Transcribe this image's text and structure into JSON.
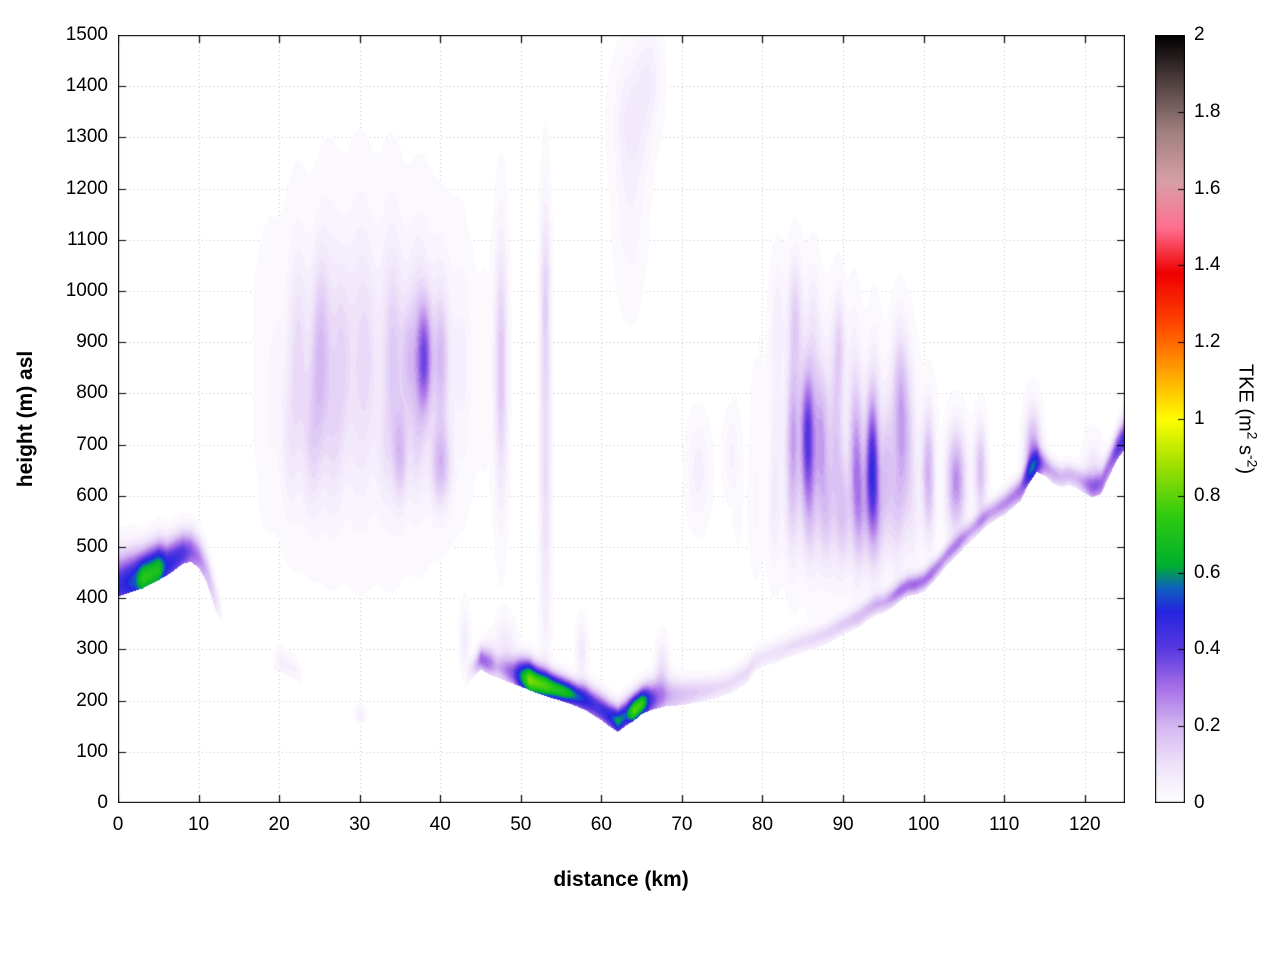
{
  "figure": {
    "background": "#ffffff",
    "xlabel": "distance (km)",
    "ylabel": "height (m) asl",
    "colorbar_label": {
      "prefix": "TKE (m",
      "sup1": "2",
      "mid": " s",
      "sup2": "-2",
      "suffix": ")"
    }
  },
  "chart_data": {
    "type": "heatmap",
    "title": "",
    "xlabel": "distance (km)",
    "ylabel": "height (m) asl",
    "cblabel": "TKE (m^2 s^-2)",
    "xlim": [
      0,
      125
    ],
    "ylim": [
      0,
      1500
    ],
    "cblim": [
      0,
      2
    ],
    "grid": true,
    "xticks": [
      0,
      10,
      20,
      30,
      40,
      50,
      60,
      70,
      80,
      90,
      100,
      110,
      120
    ],
    "yticks": [
      0,
      100,
      200,
      300,
      400,
      500,
      600,
      700,
      800,
      900,
      1000,
      1100,
      1200,
      1300,
      1400,
      1500
    ],
    "cbticks": [
      {
        "v": 0,
        "label": "0"
      },
      {
        "v": 0.2,
        "label": "0.2"
      },
      {
        "v": 0.4,
        "label": "0.4"
      },
      {
        "v": 0.6,
        "label": "0.6"
      },
      {
        "v": 0.8,
        "label": "0.8"
      },
      {
        "v": 1,
        "label": "1"
      },
      {
        "v": 1.2,
        "label": "1.2"
      },
      {
        "v": 1.4,
        "label": "1.4"
      },
      {
        "v": 1.6,
        "label": "1.6"
      },
      {
        "v": 1.8,
        "label": "1.8"
      },
      {
        "v": 2,
        "label": "2"
      }
    ],
    "palette": [
      [
        0.0,
        "#ffffff"
      ],
      [
        0.1,
        "#efe3fa"
      ],
      [
        0.2,
        "#d5b8f2"
      ],
      [
        0.3,
        "#a871e8"
      ],
      [
        0.4,
        "#5a3ae0"
      ],
      [
        0.5,
        "#2525e0"
      ],
      [
        0.56,
        "#1060c0"
      ],
      [
        0.62,
        "#00b030"
      ],
      [
        0.75,
        "#30cc10"
      ],
      [
        0.88,
        "#a0e000"
      ],
      [
        1.0,
        "#ffff00"
      ],
      [
        1.12,
        "#ffa500"
      ],
      [
        1.25,
        "#ff4500"
      ],
      [
        1.38,
        "#f00000"
      ],
      [
        1.5,
        "#ff7090"
      ],
      [
        1.62,
        "#d8a0a8"
      ],
      [
        1.75,
        "#a08080"
      ],
      [
        1.88,
        "#504040"
      ],
      [
        2.0,
        "#000000"
      ]
    ],
    "quantize_step": 0.02,
    "terrain_profile_m": [
      [
        0,
        405
      ],
      [
        3,
        420
      ],
      [
        6,
        445
      ],
      [
        8,
        468
      ],
      [
        9,
        472
      ],
      [
        10,
        460
      ],
      [
        11,
        430
      ],
      [
        12,
        380
      ],
      [
        14,
        310
      ],
      [
        16,
        270
      ],
      [
        18,
        255
      ],
      [
        20,
        258
      ],
      [
        22,
        240
      ],
      [
        24,
        205
      ],
      [
        26,
        180
      ],
      [
        28,
        160
      ],
      [
        30,
        152
      ],
      [
        32,
        158
      ],
      [
        34,
        165
      ],
      [
        36,
        170
      ],
      [
        38,
        172
      ],
      [
        40,
        185
      ],
      [
        42,
        210
      ],
      [
        44,
        245
      ],
      [
        45,
        262
      ],
      [
        46,
        252
      ],
      [
        48,
        240
      ],
      [
        50,
        228
      ],
      [
        52,
        215
      ],
      [
        54,
        205
      ],
      [
        56,
        195
      ],
      [
        58,
        182
      ],
      [
        60,
        162
      ],
      [
        61,
        150
      ],
      [
        62,
        140
      ],
      [
        63,
        152
      ],
      [
        64,
        162
      ],
      [
        65,
        175
      ],
      [
        66,
        182
      ],
      [
        68,
        190
      ],
      [
        70,
        192
      ],
      [
        72,
        198
      ],
      [
        74,
        205
      ],
      [
        76,
        215
      ],
      [
        78,
        235
      ],
      [
        79,
        258
      ],
      [
        80,
        266
      ],
      [
        82,
        277
      ],
      [
        84,
        290
      ],
      [
        86,
        300
      ],
      [
        88,
        312
      ],
      [
        90,
        330
      ],
      [
        92,
        345
      ],
      [
        93,
        358
      ],
      [
        94,
        368
      ],
      [
        95,
        372
      ],
      [
        96,
        382
      ],
      [
        97,
        395
      ],
      [
        98,
        405
      ],
      [
        99,
        408
      ],
      [
        100,
        415
      ],
      [
        101,
        430
      ],
      [
        102,
        448
      ],
      [
        103,
        468
      ],
      [
        104,
        483
      ],
      [
        105,
        500
      ],
      [
        106,
        515
      ],
      [
        107,
        530
      ],
      [
        108,
        545
      ],
      [
        109,
        555
      ],
      [
        110,
        565
      ],
      [
        111,
        578
      ],
      [
        112,
        592
      ],
      [
        113,
        625
      ],
      [
        114,
        648
      ],
      [
        115,
        640
      ],
      [
        116,
        625
      ],
      [
        117,
        618
      ],
      [
        118,
        622
      ],
      [
        119,
        615
      ],
      [
        120,
        605
      ],
      [
        121,
        598
      ],
      [
        122,
        605
      ],
      [
        123,
        640
      ],
      [
        124,
        672
      ],
      [
        125,
        695
      ]
    ],
    "surface_band": [
      [
        0,
        0.45,
        60
      ],
      [
        2,
        0.55,
        55
      ],
      [
        3,
        0.72,
        50
      ],
      [
        5,
        0.7,
        50
      ],
      [
        6,
        0.5,
        45
      ],
      [
        8,
        0.42,
        42
      ],
      [
        9,
        0.35,
        40
      ],
      [
        10,
        0.28,
        40
      ],
      [
        11,
        0.2,
        40
      ],
      [
        12,
        0.12,
        35
      ],
      [
        13,
        0,
        30
      ],
      [
        19,
        0,
        25
      ],
      [
        20,
        0.06,
        25
      ],
      [
        22,
        0.05,
        22
      ],
      [
        23,
        0,
        20
      ],
      [
        29,
        0,
        15
      ],
      [
        30,
        0.07,
        15
      ],
      [
        31,
        0,
        15
      ],
      [
        43,
        0,
        20
      ],
      [
        44,
        0.12,
        22
      ],
      [
        45,
        0.3,
        25
      ],
      [
        46,
        0.2,
        25
      ],
      [
        47,
        0.18,
        25
      ],
      [
        48,
        0.25,
        28
      ],
      [
        49,
        0.35,
        32
      ],
      [
        50,
        0.6,
        35
      ],
      [
        51,
        0.85,
        35
      ],
      [
        52,
        0.8,
        32
      ],
      [
        53,
        0.75,
        30
      ],
      [
        54,
        0.72,
        28
      ],
      [
        55,
        0.7,
        27
      ],
      [
        56,
        0.65,
        26
      ],
      [
        57,
        0.55,
        26
      ],
      [
        58,
        0.5,
        30
      ],
      [
        59,
        0.45,
        30
      ],
      [
        60,
        0.45,
        30
      ],
      [
        61,
        0.5,
        29
      ],
      [
        62,
        0.62,
        28
      ],
      [
        63,
        0.55,
        30
      ],
      [
        64,
        0.8,
        30
      ],
      [
        65,
        0.75,
        30
      ],
      [
        66,
        0.45,
        34
      ],
      [
        67,
        0.3,
        38
      ],
      [
        68,
        0.22,
        34
      ],
      [
        70,
        0.18,
        30
      ],
      [
        72,
        0.15,
        26
      ],
      [
        75,
        0.12,
        22
      ],
      [
        78,
        0.12,
        22
      ],
      [
        80,
        0.1,
        20
      ],
      [
        83,
        0.11,
        20
      ],
      [
        85,
        0.12,
        20
      ],
      [
        88,
        0.13,
        20
      ],
      [
        90,
        0.15,
        20
      ],
      [
        93,
        0.18,
        20
      ],
      [
        95,
        0.2,
        20
      ],
      [
        97,
        0.28,
        20
      ],
      [
        99,
        0.3,
        20
      ],
      [
        101,
        0.28,
        20
      ],
      [
        103,
        0.25,
        20
      ],
      [
        105,
        0.22,
        20
      ],
      [
        107,
        0.22,
        20
      ],
      [
        109,
        0.25,
        22
      ],
      [
        111,
        0.28,
        25
      ],
      [
        113,
        0.32,
        28
      ],
      [
        115,
        0.25,
        25
      ],
      [
        117,
        0.2,
        22
      ],
      [
        119,
        0.2,
        22
      ],
      [
        121,
        0.22,
        25
      ],
      [
        123,
        0.3,
        30
      ],
      [
        124,
        0.4,
        35
      ],
      [
        125,
        0.45,
        40
      ]
    ],
    "blobs": [
      {
        "x": 38,
        "y": 870,
        "sx": 2.2,
        "sy": 110,
        "amp": 0.28,
        "stripe": 2.5
      },
      {
        "x": 37,
        "y": 860,
        "sx": 6,
        "sy": 200,
        "amp": 0.1,
        "stripe": 3
      },
      {
        "x": 25,
        "y": 880,
        "sx": 3.5,
        "sy": 180,
        "amp": 0.14,
        "stripe": 3
      },
      {
        "x": 30,
        "y": 900,
        "sx": 9,
        "sy": 280,
        "amp": 0.06,
        "stripe": 4
      },
      {
        "x": 31,
        "y": 820,
        "sx": 12,
        "sy": 330,
        "amp": 0.035
      },
      {
        "x": 24,
        "y": 700,
        "sx": 4,
        "sy": 140,
        "amp": 0.09,
        "stripe": 3
      },
      {
        "x": 35,
        "y": 680,
        "sx": 2,
        "sy": 90,
        "amp": 0.14,
        "stripe": 2.5
      },
      {
        "x": 40,
        "y": 660,
        "sx": 1.2,
        "sy": 80,
        "amp": 0.16
      },
      {
        "x": 47.5,
        "y": 850,
        "sx": 0.8,
        "sy": 250,
        "amp": 0.16
      },
      {
        "x": 53,
        "y": 700,
        "sx": 0.7,
        "sy": 400,
        "amp": 0.12
      },
      {
        "x": 53,
        "y": 1000,
        "sx": 0.6,
        "sy": 150,
        "amp": 0.08
      },
      {
        "x": 64,
        "y": 1350,
        "sx": 2.5,
        "sy": 120,
        "amp": 0.06
      },
      {
        "x": 63.5,
        "y": 1180,
        "sx": 2,
        "sy": 200,
        "amp": 0.045
      },
      {
        "x": 66,
        "y": 1430,
        "sx": 1.5,
        "sy": 90,
        "amp": 0.05
      },
      {
        "x": 72,
        "y": 650,
        "sx": 1.5,
        "sy": 100,
        "amp": 0.06
      },
      {
        "x": 76,
        "y": 680,
        "sx": 1,
        "sy": 80,
        "amp": 0.05
      },
      {
        "x": 43,
        "y": 320,
        "sx": 0.6,
        "sy": 60,
        "amp": 0.07
      },
      {
        "x": 46,
        "y": 285,
        "sx": 0.8,
        "sy": 35,
        "amp": 0.1
      },
      {
        "x": 48,
        "y": 315,
        "sx": 1.2,
        "sy": 45,
        "amp": 0.08
      },
      {
        "x": 57.5,
        "y": 300,
        "sx": 0.7,
        "sy": 55,
        "amp": 0.08
      },
      {
        "x": 67.5,
        "y": 265,
        "sx": 0.8,
        "sy": 55,
        "amp": 0.1
      },
      {
        "x": 85.5,
        "y": 720,
        "sx": 2.2,
        "sy": 130,
        "amp": 0.36,
        "stripe": 2.2
      },
      {
        "x": 93.5,
        "y": 650,
        "sx": 2,
        "sy": 140,
        "amp": 0.38,
        "stripe": 2.2
      },
      {
        "x": 89,
        "y": 700,
        "sx": 7,
        "sy": 210,
        "amp": 0.15,
        "stripe": 2.5
      },
      {
        "x": 84,
        "y": 950,
        "sx": 2.5,
        "sy": 120,
        "amp": 0.13,
        "stripe": 2.5
      },
      {
        "x": 89.5,
        "y": 900,
        "sx": 1.2,
        "sy": 100,
        "amp": 0.1,
        "stripe": 2.2
      },
      {
        "x": 90,
        "y": 560,
        "sx": 8,
        "sy": 110,
        "amp": 0.13,
        "stripe": 2.2
      },
      {
        "x": 97,
        "y": 820,
        "sx": 0.9,
        "sy": 120,
        "amp": 0.09
      },
      {
        "x": 97.5,
        "y": 700,
        "sx": 1.2,
        "sy": 170,
        "amp": 0.18
      },
      {
        "x": 100.5,
        "y": 650,
        "sx": 0.8,
        "sy": 120,
        "amp": 0.2
      },
      {
        "x": 104,
        "y": 630,
        "sx": 1.2,
        "sy": 100,
        "amp": 0.26
      },
      {
        "x": 107,
        "y": 650,
        "sx": 0.8,
        "sy": 90,
        "amp": 0.18
      },
      {
        "x": 113.5,
        "y": 670,
        "sx": 1,
        "sy": 90,
        "amp": 0.28
      },
      {
        "x": 121,
        "y": 630,
        "sx": 1.2,
        "sy": 70,
        "amp": 0.12
      }
    ]
  }
}
